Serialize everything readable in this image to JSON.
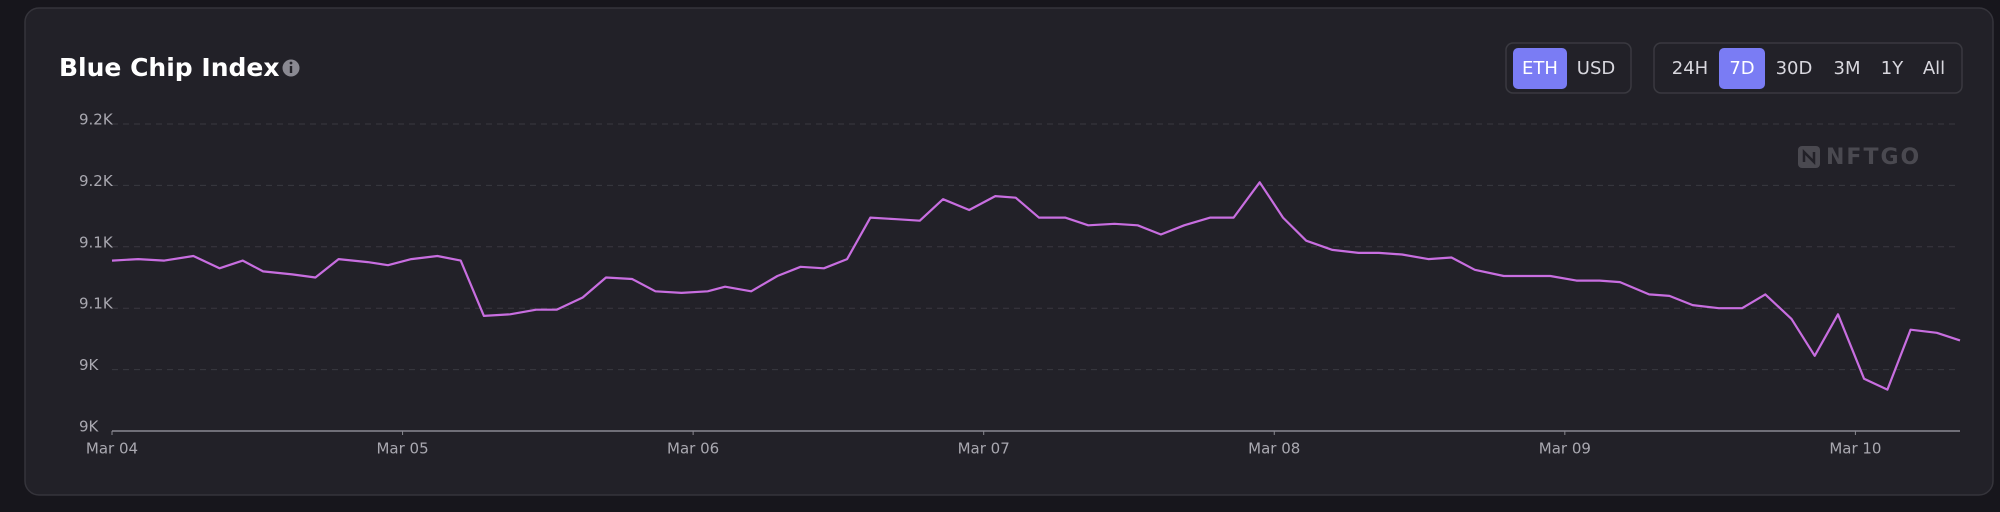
{
  "chart_data": {
    "type": "line",
    "title": "Blue Chip Index",
    "x": [
      0,
      0.09,
      0.18,
      0.28,
      0.37,
      0.45,
      0.52,
      0.62,
      0.7,
      0.78,
      0.88,
      0.95,
      1.03,
      1.12,
      1.2,
      1.28,
      1.37,
      1.46,
      1.53,
      1.62,
      1.7,
      1.79,
      1.87,
      1.96,
      2.05,
      2.11,
      2.2,
      2.29,
      2.37,
      2.45,
      2.53,
      2.61,
      2.7,
      2.78,
      2.86,
      2.95,
      3.04,
      3.11,
      3.19,
      3.28,
      3.36,
      3.45,
      3.53,
      3.61,
      3.69,
      3.78,
      3.86,
      3.95,
      4.03,
      4.11,
      4.2,
      4.29,
      4.36,
      4.44,
      4.53,
      4.61,
      4.69,
      4.79,
      4.88,
      4.95,
      5.04,
      5.12,
      5.19,
      5.29,
      5.36,
      5.44,
      5.53,
      5.61,
      5.69,
      5.78,
      5.86,
      5.94,
      6.03,
      6.11,
      6.19,
      6.28,
      6.36
    ],
    "values": [
      9111,
      9112,
      9111,
      9114,
      9106,
      9111,
      9104,
      9102,
      9100,
      9112,
      9110,
      9108,
      9112,
      9114,
      9111,
      9075,
      9076,
      9079,
      9079,
      9087,
      9100,
      9099,
      9091,
      9090,
      9091,
      9094,
      9091,
      9101,
      9107,
      9106,
      9112,
      9139,
      9138,
      9137,
      9151,
      9144,
      9153,
      9152,
      9139,
      9139,
      9134,
      9135,
      9134,
      9128,
      9134,
      9139,
      9139,
      9162,
      9139,
      9124,
      9118,
      9116,
      9116,
      9115,
      9112,
      9113,
      9105,
      9101,
      9101,
      9101,
      9098,
      9098,
      9097,
      9089,
      9088,
      9082,
      9080,
      9080,
      9089,
      9073,
      9049,
      9076,
      9034,
      9027,
      9066,
      9064,
      9059
    ],
    "color": "#c86ee0",
    "xlim": [
      0,
      6.36
    ],
    "xticks": [
      {
        "value": 0,
        "label": "Mar 04"
      },
      {
        "value": 1,
        "label": "Mar 05"
      },
      {
        "value": 2,
        "label": "Mar 06"
      },
      {
        "value": 3,
        "label": "Mar 07"
      },
      {
        "value": 4,
        "label": "Mar 08"
      },
      {
        "value": 5,
        "label": "Mar 09"
      },
      {
        "value": 6,
        "label": "Mar 10"
      }
    ],
    "ylim": [
      9000,
      9200
    ],
    "yticks": [
      {
        "value": 9000,
        "label": "9K"
      },
      {
        "value": 9040,
        "label": "9K"
      },
      {
        "value": 9080,
        "label": "9.1K"
      },
      {
        "value": 9120,
        "label": "9.1K"
      },
      {
        "value": 9160,
        "label": "9.2K"
      },
      {
        "value": 9200,
        "label": "9.2K"
      }
    ],
    "grid": true
  },
  "controls": {
    "currency": [
      "ETH",
      "USD"
    ],
    "selected_currency": 0,
    "ranges": [
      "24H",
      "7D",
      "30D",
      "3M",
      "1Y",
      "All"
    ],
    "selected_range": 1
  },
  "watermark": "NFTGO"
}
